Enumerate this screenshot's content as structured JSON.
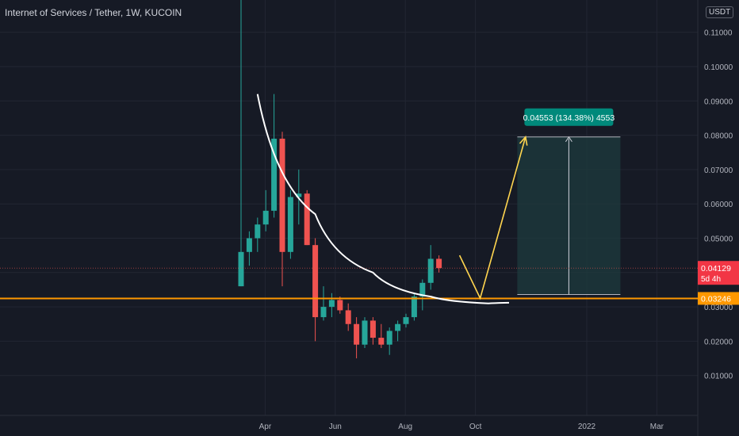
{
  "header": {
    "title": "Internet of Services / Tether, 1W, KUCOIN",
    "unit": "USDT"
  },
  "colors": {
    "background": "#161a25",
    "grid": "#222633",
    "up": "#26a69a",
    "down": "#ef5350",
    "support_line": "#ff9800",
    "arrow": "#ffd54f",
    "curve": "#ffffff",
    "target_zone": "#1d3b3d",
    "target_label_bg": "#00897b",
    "last_price_bg": "#f23645",
    "axis_text": "#b2b5be"
  },
  "chart_data": {
    "type": "candlestick",
    "y_axis": {
      "min": 0,
      "max": 0.12,
      "ticks": [
        "0.01000",
        "0.02000",
        "0.03000",
        "0.04000",
        "0.05000",
        "0.06000",
        "0.07000",
        "0.08000",
        "0.09000",
        "0.10000",
        "0.11000"
      ]
    },
    "x_axis": {
      "labels": [
        {
          "label": "Apr",
          "week": 1
        },
        {
          "label": "Jun",
          "week": 9.5
        },
        {
          "label": "Aug",
          "week": 18
        },
        {
          "label": "Oct",
          "week": 26.5
        },
        {
          "label": "2022",
          "week": 40
        },
        {
          "label": "Mar",
          "week": 48.5
        }
      ]
    },
    "candles": [
      {
        "o": 0.036,
        "h": 0.12,
        "l": 0.036,
        "c": 0.046
      },
      {
        "o": 0.046,
        "h": 0.052,
        "l": 0.042,
        "c": 0.05
      },
      {
        "o": 0.05,
        "h": 0.056,
        "l": 0.046,
        "c": 0.054
      },
      {
        "o": 0.054,
        "h": 0.064,
        "l": 0.052,
        "c": 0.058
      },
      {
        "o": 0.058,
        "h": 0.092,
        "l": 0.056,
        "c": 0.079
      },
      {
        "o": 0.079,
        "h": 0.081,
        "l": 0.036,
        "c": 0.046
      },
      {
        "o": 0.046,
        "h": 0.064,
        "l": 0.044,
        "c": 0.062
      },
      {
        "o": 0.062,
        "h": 0.07,
        "l": 0.054,
        "c": 0.063
      },
      {
        "o": 0.063,
        "h": 0.064,
        "l": 0.048,
        "c": 0.048
      },
      {
        "o": 0.048,
        "h": 0.05,
        "l": 0.02,
        "c": 0.027
      },
      {
        "o": 0.027,
        "h": 0.036,
        "l": 0.026,
        "c": 0.03
      },
      {
        "o": 0.03,
        "h": 0.034,
        "l": 0.027,
        "c": 0.032
      },
      {
        "o": 0.032,
        "h": 0.033,
        "l": 0.028,
        "c": 0.029
      },
      {
        "o": 0.029,
        "h": 0.031,
        "l": 0.023,
        "c": 0.025
      },
      {
        "o": 0.025,
        "h": 0.027,
        "l": 0.015,
        "c": 0.019
      },
      {
        "o": 0.019,
        "h": 0.027,
        "l": 0.018,
        "c": 0.026
      },
      {
        "o": 0.026,
        "h": 0.027,
        "l": 0.019,
        "c": 0.021
      },
      {
        "o": 0.021,
        "h": 0.025,
        "l": 0.018,
        "c": 0.019
      },
      {
        "o": 0.019,
        "h": 0.024,
        "l": 0.016,
        "c": 0.023
      },
      {
        "o": 0.023,
        "h": 0.026,
        "l": 0.02,
        "c": 0.025
      },
      {
        "o": 0.025,
        "h": 0.028,
        "l": 0.024,
        "c": 0.027
      },
      {
        "o": 0.027,
        "h": 0.034,
        "l": 0.026,
        "c": 0.033
      },
      {
        "o": 0.033,
        "h": 0.038,
        "l": 0.029,
        "c": 0.037
      },
      {
        "o": 0.037,
        "h": 0.048,
        "l": 0.035,
        "c": 0.044
      },
      {
        "o": 0.044,
        "h": 0.045,
        "l": 0.04,
        "c": 0.0413
      }
    ],
    "last_price": {
      "value": 0.04129,
      "label": "0.04129",
      "countdown": "5d 4h"
    },
    "support": {
      "value": 0.03246,
      "label": "0.03246"
    },
    "target_zone": {
      "from_week": 33.5,
      "to_week": 46,
      "low": 0.0336,
      "high": 0.0795,
      "label": "0.04553 (134.38%) 4553"
    },
    "curve": [
      {
        "week": 2,
        "price": 0.092
      },
      {
        "week": 9,
        "price": 0.057
      },
      {
        "week": 16,
        "price": 0.04
      },
      {
        "week": 23,
        "price": 0.033
      },
      {
        "week": 30,
        "price": 0.031
      },
      {
        "week": 32.5,
        "price": 0.0312
      }
    ],
    "projection_path": [
      {
        "week": 26.5,
        "price": 0.045
      },
      {
        "week": 29,
        "price": 0.0325
      },
      {
        "week": 34.5,
        "price": 0.0795
      }
    ]
  }
}
